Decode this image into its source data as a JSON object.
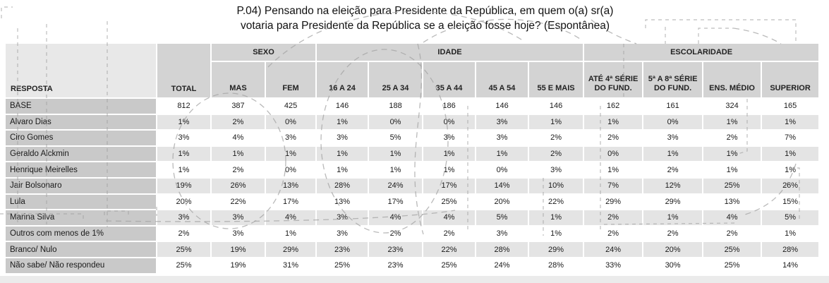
{
  "title": {
    "line1": "P.04) Pensando na eleição para Presidente da República, em quem o(a) sr(a)",
    "line2": "votaria para Presidente da República se a eleição fosse hoje? (Espontânea)"
  },
  "chart_data": {
    "type": "table",
    "title": "P.04) Pensando na eleição para Presidente da República, em quem o(a) sr(a) votaria para Presidente da República se a eleição fosse hoje? (Espontânea)",
    "row_header": "RESPOSTA",
    "total_column": "TOTAL",
    "column_groups": [
      {
        "label": "SEXO",
        "columns": [
          "MAS",
          "FEM"
        ]
      },
      {
        "label": "IDADE",
        "columns": [
          "16 A 24",
          "25 A 34",
          "35 A 44",
          "45 A 54",
          "55 E MAIS"
        ]
      },
      {
        "label": "ESCOLARIDADE",
        "columns": [
          "ATÉ 4ª SÉRIE DO FUND.",
          "5ª A 8ª SÉRIE DO FUND.",
          "ENS. MÉDIO",
          "SUPERIOR"
        ]
      }
    ],
    "columns_flat": [
      "TOTAL",
      "MAS",
      "FEM",
      "16 A 24",
      "25 A 34",
      "35 A 44",
      "45 A 54",
      "55 E MAIS",
      "ATÉ 4ª SÉRIE DO FUND.",
      "5ª A 8ª SÉRIE DO FUND.",
      "ENS. MÉDIO",
      "SUPERIOR"
    ],
    "rows": [
      {
        "label": "BASE",
        "values": [
          "812",
          "387",
          "425",
          "146",
          "188",
          "186",
          "146",
          "146",
          "162",
          "161",
          "324",
          "165"
        ]
      },
      {
        "label": "Alvaro Dias",
        "values": [
          "1%",
          "2%",
          "0%",
          "1%",
          "0%",
          "0%",
          "3%",
          "1%",
          "1%",
          "0%",
          "1%",
          "1%"
        ]
      },
      {
        "label": "Ciro Gomes",
        "values": [
          "3%",
          "4%",
          "3%",
          "3%",
          "5%",
          "3%",
          "3%",
          "2%",
          "2%",
          "3%",
          "2%",
          "7%"
        ]
      },
      {
        "label": "Geraldo Alckmin",
        "values": [
          "1%",
          "1%",
          "1%",
          "1%",
          "1%",
          "1%",
          "1%",
          "2%",
          "0%",
          "1%",
          "1%",
          "1%"
        ]
      },
      {
        "label": "Henrique Meirelles",
        "values": [
          "1%",
          "2%",
          "0%",
          "1%",
          "1%",
          "1%",
          "0%",
          "3%",
          "1%",
          "2%",
          "1%",
          "1%"
        ]
      },
      {
        "label": "Jair Bolsonaro",
        "values": [
          "19%",
          "26%",
          "13%",
          "28%",
          "24%",
          "17%",
          "14%",
          "10%",
          "7%",
          "12%",
          "25%",
          "26%"
        ]
      },
      {
        "label": "Lula",
        "values": [
          "20%",
          "22%",
          "17%",
          "13%",
          "17%",
          "25%",
          "20%",
          "22%",
          "29%",
          "29%",
          "13%",
          "15%"
        ]
      },
      {
        "label": "Marina Silva",
        "values": [
          "3%",
          "3%",
          "4%",
          "3%",
          "4%",
          "4%",
          "5%",
          "1%",
          "2%",
          "1%",
          "4%",
          "5%"
        ]
      },
      {
        "label": "Outros com menos de 1%",
        "values": [
          "2%",
          "3%",
          "1%",
          "3%",
          "2%",
          "2%",
          "3%",
          "1%",
          "2%",
          "2%",
          "2%",
          "1%"
        ]
      },
      {
        "label": "Branco/ Nulo",
        "values": [
          "25%",
          "19%",
          "29%",
          "23%",
          "23%",
          "22%",
          "28%",
          "29%",
          "24%",
          "20%",
          "25%",
          "28%"
        ]
      },
      {
        "label": "Não sabe/ Não respondeu",
        "values": [
          "25%",
          "19%",
          "31%",
          "25%",
          "23%",
          "25%",
          "24%",
          "28%",
          "33%",
          "30%",
          "25%",
          "14%"
        ]
      }
    ]
  },
  "colors": {
    "header_bg": "#d3d3d3",
    "panel_bg": "#e8e8e8",
    "label_bg": "#c9c9c9",
    "stripe_bg": "#e4e4e4",
    "row_bg": "#ffffff",
    "footer_bg": "#ebebeb",
    "watermark": "#a3a3a3"
  }
}
